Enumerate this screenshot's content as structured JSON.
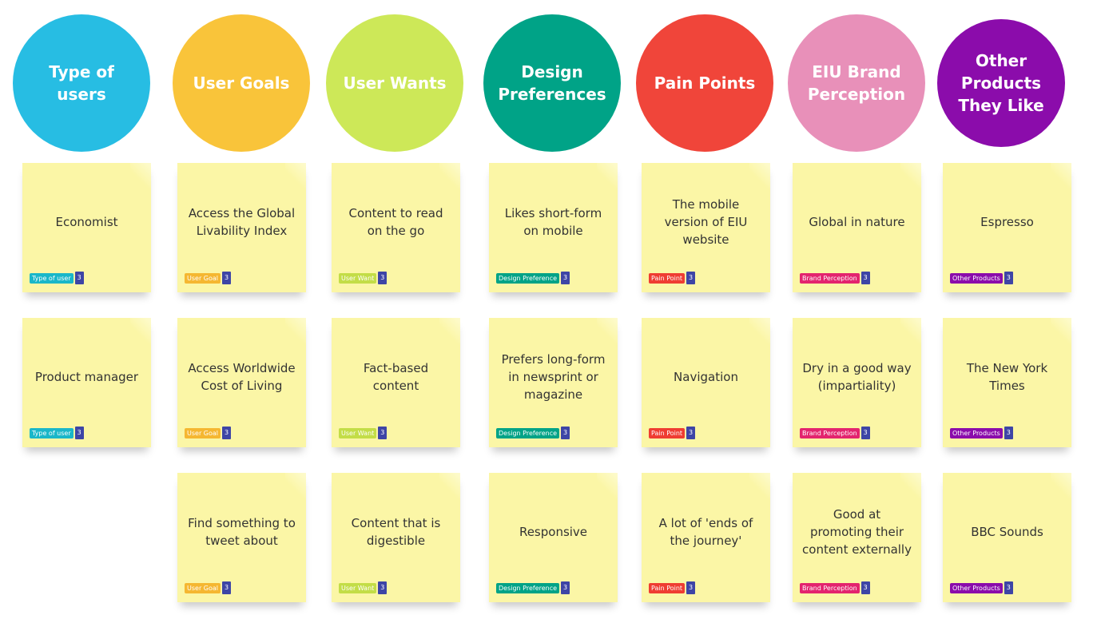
{
  "columns": [
    {
      "title": "Type of\nusers",
      "color": "#27bde3",
      "tag_label": "Type of user",
      "tag_color": "#1ab7c9",
      "notes": [
        {
          "text": "Economist",
          "count": "3"
        },
        {
          "text": "Product manager",
          "count": "3"
        }
      ]
    },
    {
      "title": "User Goals",
      "color": "#f9c43a",
      "tag_label": "User Goal",
      "tag_color": "#f5b731",
      "notes": [
        {
          "text": "Access the Global\nLivability Index",
          "count": "3"
        },
        {
          "text": "Access Worldwide\nCost of Living",
          "count": "3"
        },
        {
          "text": "Find something to\ntweet about",
          "count": "3"
        }
      ]
    },
    {
      "title": "User Wants",
      "color": "#cde858",
      "tag_label": "User Want",
      "tag_color": "#c3dd47",
      "notes": [
        {
          "text": "Content to read\non the go",
          "count": "3"
        },
        {
          "text": "Fact-based\ncontent",
          "count": "3"
        },
        {
          "text": "Content that is\ndigestible",
          "count": "3"
        }
      ]
    },
    {
      "title": "Design\nPreferences",
      "color": "#00a387",
      "tag_label": "Design Preference",
      "tag_color": "#00a387",
      "notes": [
        {
          "text": "Likes short-form\non mobile",
          "count": "3"
        },
        {
          "text": "Prefers long-form\nin newsprint or\nmagazine",
          "count": "3"
        },
        {
          "text": "Responsive",
          "count": "3"
        }
      ]
    },
    {
      "title": "Pain Points",
      "color": "#f0453a",
      "tag_label": "Pain Point",
      "tag_color": "#ef3d32",
      "notes": [
        {
          "text": "The mobile\nversion of EIU\nwebsite",
          "count": "3"
        },
        {
          "text": "Navigation",
          "count": "3"
        },
        {
          "text": "A lot of 'ends of\nthe journey'",
          "count": "3"
        }
      ]
    },
    {
      "title": "EIU Brand\nPerception",
      "color": "#e890b9",
      "tag_label": "Brand Perception",
      "tag_color": "#e3246e",
      "notes": [
        {
          "text": "Global in nature",
          "count": "3"
        },
        {
          "text": "Dry in a good way\n(impartiality)",
          "count": "3"
        },
        {
          "text": "Good at\npromoting their\ncontent externally",
          "count": "3"
        }
      ]
    },
    {
      "title": "Other\nProducts\nThey Like",
      "color": "#8b0cab",
      "tag_label": "Other Products",
      "tag_color": "#8b0cab",
      "notes": [
        {
          "text": "Espresso",
          "count": "3"
        },
        {
          "text": "The New York\nTimes",
          "count": "3"
        },
        {
          "text": "BBC Sounds",
          "count": "3"
        }
      ]
    }
  ]
}
